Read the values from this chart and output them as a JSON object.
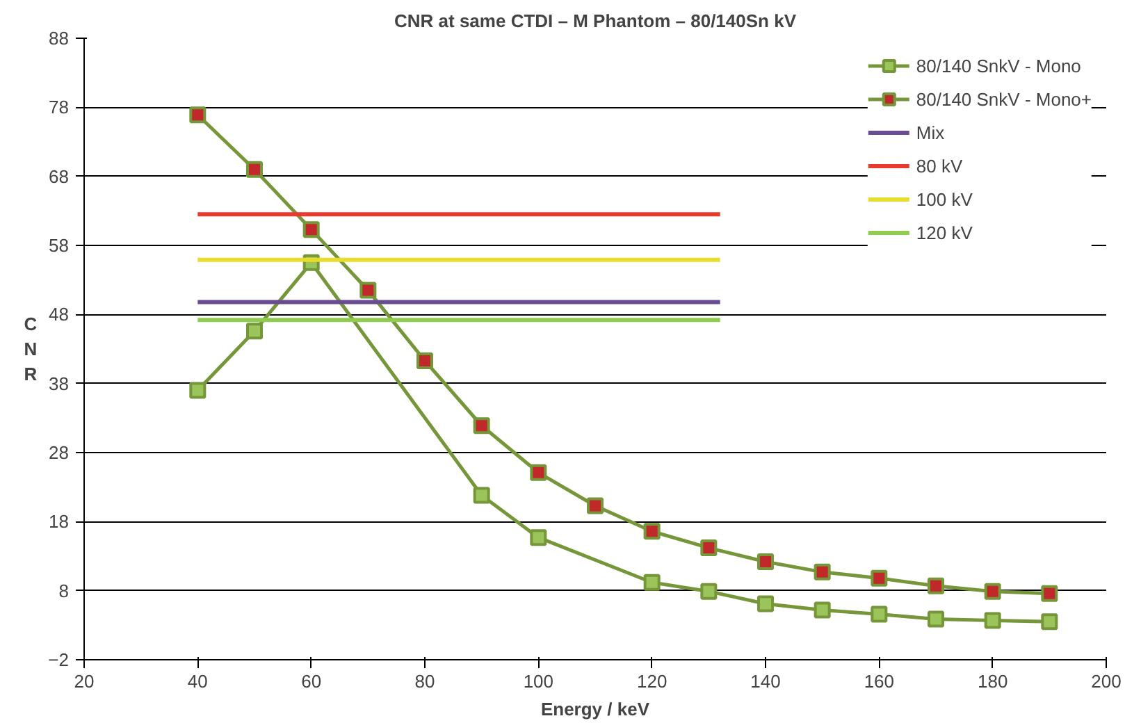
{
  "chart_data": {
    "type": "line",
    "title": "CNR at same CTDI – M Phantom – 80/140Sn kV",
    "xlabel": "Energy / keV",
    "ylabel": "CNR",
    "x": [
      40,
      50,
      60,
      70,
      80,
      90,
      100,
      110,
      120,
      130,
      140,
      150,
      160,
      170,
      180,
      190
    ],
    "series": [
      {
        "name": "80/140 SnkV - Mono",
        "color": "#9bc45a",
        "marker": "square",
        "x": [
          40,
          50,
          60,
          90,
          100,
          120,
          130,
          140,
          150,
          160,
          170,
          180,
          190
        ],
        "values": [
          37,
          45.6,
          55.5,
          21.8,
          15.7,
          9.2,
          7.9,
          6.1,
          5.2,
          4.6,
          3.9,
          3.7,
          3.5
        ]
      },
      {
        "name": "80/140 SnkV - Mono+",
        "color": "#c0282a",
        "marker": "square",
        "values": [
          76.9,
          69,
          60.3,
          51.5,
          41.3,
          31.9,
          25.1,
          20.3,
          16.6,
          14.2,
          12.2,
          10.7,
          9.8,
          8.7,
          7.9,
          7.6
        ]
      },
      {
        "name": "Mix",
        "color": "#6a4c93",
        "marker": "none",
        "x": [
          40,
          132
        ],
        "values": [
          49.8,
          49.8
        ]
      },
      {
        "name": "80 kV",
        "color": "#e8392f",
        "marker": "none",
        "x": [
          40,
          132
        ],
        "values": [
          62.5,
          62.5
        ]
      },
      {
        "name": "100 kV",
        "color": "#e8dc2c",
        "marker": "none",
        "x": [
          40,
          132
        ],
        "values": [
          55.9,
          55.9
        ]
      },
      {
        "name": "120 kV",
        "color": "#8fcc4f",
        "marker": "none",
        "x": [
          40,
          132
        ],
        "values": [
          47.2,
          47.2
        ]
      }
    ],
    "xlim": [
      20,
      200
    ],
    "xticks": [
      20,
      40,
      60,
      80,
      100,
      120,
      140,
      160,
      180,
      200
    ],
    "ylim": [
      -2,
      88
    ],
    "yticks": [
      -2,
      8,
      18,
      28,
      38,
      48,
      58,
      68,
      78,
      88
    ],
    "grid": "y",
    "legend": "top right"
  }
}
